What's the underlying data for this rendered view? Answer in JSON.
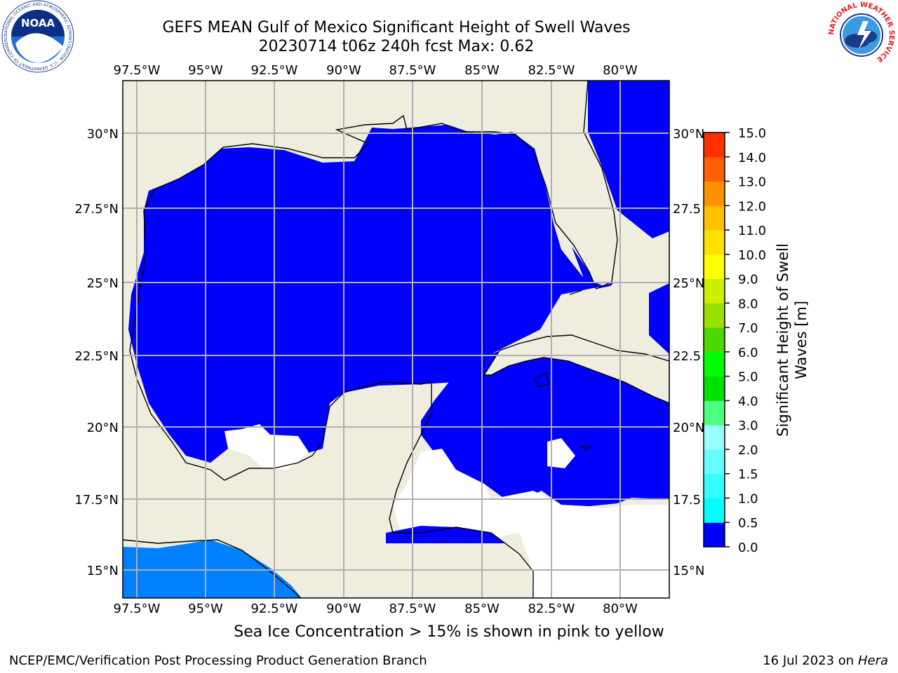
{
  "header": {
    "title_line1": "GEFS MEAN Gulf of Mexico Significant Height of Swell Waves",
    "title_line2": "20230714 t06z 240h fcst   Max: 0.62"
  },
  "logos": {
    "left": "NOAA",
    "left_ring": "NATIONAL OCEANIC AND ATMOSPHERIC ADMINISTRATION · U.S. DEPARTMENT OF COMMERCE",
    "right_ring": "NATIONAL WEATHER SERVICE"
  },
  "map": {
    "lon_labels": [
      "97.5°W",
      "95°W",
      "92.5°W",
      "90°W",
      "87.5°W",
      "85°W",
      "82.5°W",
      "80°W"
    ],
    "lat_labels_left": [
      "30°N",
      "27.5°N",
      "25°N",
      "22.5°N",
      "20°N",
      "17.5°N",
      "15°N"
    ],
    "lat_labels_right": [
      "30°N",
      "27.5",
      "25°N",
      "22.5",
      "20°N",
      "17.5",
      "15°N"
    ],
    "colors": {
      "land": "#efedde",
      "sea_0": "#0000ff",
      "sea_05": "#0080ff",
      "no_data": "#ffffff",
      "grid": "#b0b0b0"
    }
  },
  "colorbar": {
    "title": "Significant Height of Swell Waves [m]",
    "ticks": [
      "15.0",
      "14.0",
      "13.0",
      "12.0",
      "11.0",
      "10.0",
      "9.0",
      "8.0",
      "7.0",
      "6.0",
      "5.0",
      "4.0",
      "3.0",
      "2.0",
      "1.5",
      "1.0",
      "0.5",
      "0.0"
    ],
    "colors": [
      "#0000ff",
      "#0080ff",
      "#00ffff",
      "#33ffff",
      "#66ffff",
      "#99ffff",
      "#4dff80",
      "#00e000",
      "#00ff00",
      "#4dd800",
      "#99e000",
      "#ccee00",
      "#ffff00",
      "#ffe000",
      "#ffc000",
      "#ff9000",
      "#ff6000",
      "#ff3000",
      "#ff0000"
    ]
  },
  "bottom_note": "Sea Ice Concentration > 15% is shown in pink to yellow",
  "footer": {
    "left": "NCEP/EMC/Verification Post Processing Product Generation Branch",
    "right_prefix": "16 Jul 2023 on ",
    "right_host": "Hera"
  }
}
